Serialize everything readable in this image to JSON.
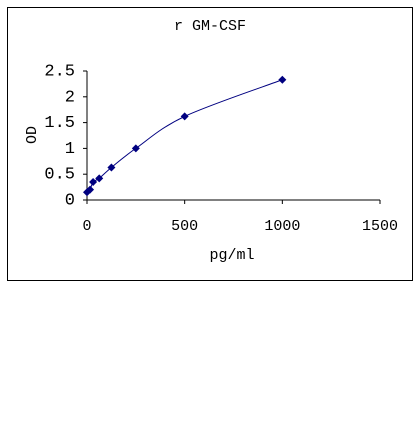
{
  "chart_data": {
    "type": "scatter",
    "title": "r GM-CSF",
    "x_label": "pg/ml",
    "y_label": "OD",
    "x": [
      0,
      15.6,
      31.25,
      62.5,
      125,
      250,
      500,
      1000
    ],
    "series": [
      {
        "color": "#000080",
        "values": [
          0.15,
          0.2,
          0.35,
          0.42,
          0.63,
          1.0,
          1.62,
          2.33
        ]
      }
    ],
    "xlim": [
      0,
      1500
    ],
    "xticks": [
      0,
      500,
      1000,
      1500
    ],
    "ylim": [
      0,
      2.5
    ],
    "yticks": [
      0,
      0.5,
      1,
      1.5,
      2,
      2.5
    ],
    "smooth_line": true
  }
}
